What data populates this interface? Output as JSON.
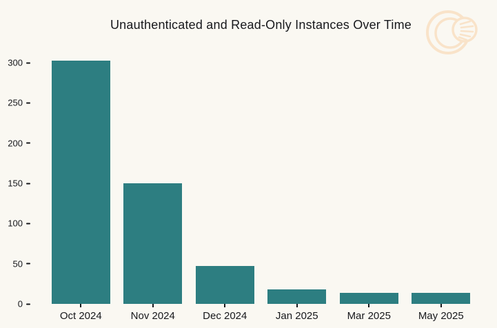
{
  "page": {
    "background_color": "#FAF8F2",
    "text_color": "#17181C"
  },
  "header": {
    "title": "Unauthenticated and Read-Only Instances Over Time"
  },
  "logo": {
    "name": "overlapping-circles-rays-watermark",
    "color": "#F9E3C9"
  },
  "chart_data": {
    "type": "bar",
    "title": "Unauthenticated and Read-Only Instances Over Time",
    "categories": [
      "Oct 2024",
      "Nov 2024",
      "Dec 2024",
      "Jan 2025",
      "Mar 2025",
      "May 2025"
    ],
    "values": [
      303,
      150,
      47,
      18,
      14,
      14
    ],
    "xlabel": "",
    "ylabel": "",
    "y_ticks": [
      0,
      50,
      100,
      150,
      200,
      250,
      300
    ],
    "ylim": [
      0,
      310
    ],
    "grid": false,
    "legend": false,
    "bar_color": "#2D7E81",
    "text_color": "#17181C",
    "background_color": "#FAF8F2"
  }
}
